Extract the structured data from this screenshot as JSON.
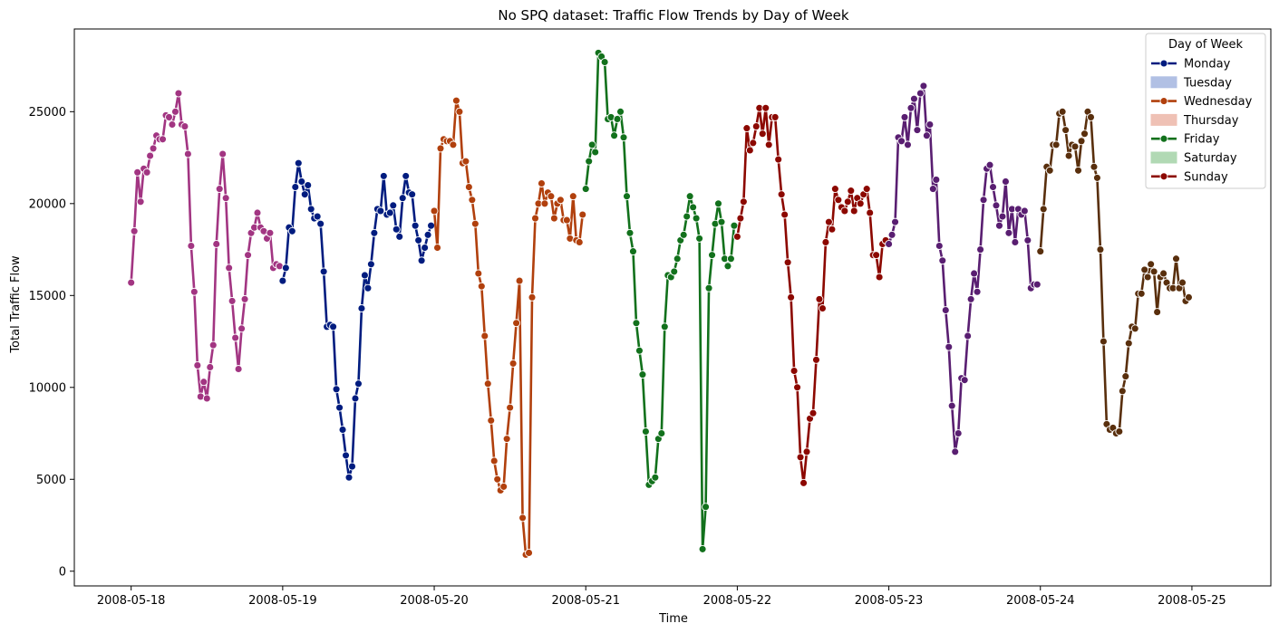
{
  "chart_data": {
    "type": "line",
    "title": "No SPQ dataset: Traffic Flow Trends by Day of Week",
    "xlabel": "Time",
    "ylabel": "Total Traffic Flow",
    "x_is_time": true,
    "xlim": [
      "2008-05-17 15:00",
      "2008-05-25 12:30"
    ],
    "ylim": [
      -800,
      29500
    ],
    "grid": false,
    "xticks": [
      "2008-05-18",
      "2008-05-19",
      "2008-05-20",
      "2008-05-21",
      "2008-05-22",
      "2008-05-23",
      "2008-05-24",
      "2008-05-25"
    ],
    "yticks": [
      0,
      5000,
      10000,
      15000,
      20000,
      25000
    ],
    "legend": {
      "title": "Day of Week",
      "position": "top-right",
      "entries": [
        {
          "label": "Monday",
          "kind": "line",
          "color": "#001c7f"
        },
        {
          "label": "Tuesday",
          "kind": "band",
          "color": "#b1c0e4"
        },
        {
          "label": "Wednesday",
          "kind": "line",
          "color": "#b1400d"
        },
        {
          "label": "Thursday",
          "kind": "band",
          "color": "#efc1b5"
        },
        {
          "label": "Friday",
          "kind": "line",
          "color": "#12711c"
        },
        {
          "label": "Saturday",
          "kind": "band",
          "color": "#b1d9b4"
        },
        {
          "label": "Sunday",
          "kind": "line",
          "color": "#8c0800"
        }
      ]
    },
    "series": [
      {
        "color": "#a23582",
        "x_start": "2008-05-18 00:00",
        "step_minutes": 30,
        "values": [
          15700,
          18500,
          21700,
          20100,
          21900,
          21700,
          22600,
          23000,
          23700,
          23500,
          23500,
          24800,
          24700,
          24300,
          25000,
          26000,
          24300,
          24200,
          22700,
          17700,
          15200,
          11200,
          9500,
          10300,
          9400,
          11100,
          12300,
          17800,
          20800,
          22700,
          20300,
          16500,
          14700,
          12700,
          11000,
          13200,
          14800,
          17200,
          18400,
          18700,
          19500,
          18700,
          18500,
          18100,
          18400,
          16500,
          16700,
          16600
        ]
      },
      {
        "color": "#001c7f",
        "x_start": "2008-05-19 00:00",
        "step_minutes": 30,
        "values": [
          15800,
          16500,
          18700,
          18500,
          20900,
          22200,
          21200,
          20500,
          21000,
          19700,
          19200,
          19300,
          18900,
          16300,
          13300,
          13400,
          13300,
          9900,
          8900,
          7700,
          6300,
          5100,
          5700,
          9400,
          10200,
          14300,
          16100,
          15400,
          16700,
          18400,
          19700,
          19600,
          21500,
          19400,
          19500,
          19900,
          18600,
          18200,
          20300,
          21500,
          20600,
          20500,
          18800,
          18000,
          16900,
          17600,
          18300,
          18800
        ]
      },
      {
        "color": "#b1400d",
        "x_start": "2008-05-20 00:00",
        "step_minutes": 30,
        "values": [
          19600,
          17600,
          23000,
          23500,
          23400,
          23400,
          23200,
          25600,
          25000,
          22200,
          22300,
          20900,
          20200,
          18900,
          16200,
          15500,
          12800,
          10200,
          8200,
          6000,
          5000,
          4400,
          4600,
          7200,
          8900,
          11300,
          13500,
          15800,
          2900,
          900,
          1000,
          14900,
          19200,
          20000,
          21100,
          20000,
          20600,
          20400,
          19200,
          20000,
          20200,
          19100,
          19100,
          18100,
          20400,
          18000,
          17900,
          19400
        ]
      },
      {
        "color": "#12711c",
        "x_start": "2008-05-21 00:00",
        "step_minutes": 30,
        "values": [
          20800,
          22300,
          23200,
          22800,
          28200,
          28000,
          27700,
          24600,
          24700,
          23700,
          24600,
          25000,
          23600,
          20400,
          18400,
          17400,
          13500,
          12000,
          10700,
          7600,
          4700,
          4900,
          5100,
          7200,
          7500,
          13300,
          16100,
          16000,
          16300,
          17000,
          18000,
          18300,
          19300,
          20400,
          19800,
          19200,
          18100,
          1200,
          3500,
          15400,
          17200,
          18900,
          20000,
          19000,
          17000,
          16600,
          17000,
          18800
        ]
      },
      {
        "color": "#8c0800",
        "x_start": "2008-05-22 00:00",
        "step_minutes": 30,
        "values": [
          18200,
          19200,
          20100,
          24100,
          22900,
          23300,
          24200,
          25200,
          23800,
          25200,
          23200,
          24700,
          24700,
          22400,
          20500,
          19400,
          16800,
          14900,
          10900,
          10000,
          6200,
          4800,
          6500,
          8300,
          8600,
          11500,
          14800,
          14300,
          17900,
          19000,
          18600,
          20800,
          20200,
          19800,
          19600,
          20100,
          20700,
          19600,
          20300,
          20000,
          20500,
          20800,
          19500,
          17200,
          17200,
          16000,
          17800,
          18000
        ]
      },
      {
        "color": "#591e71",
        "x_start": "2008-05-23 00:00",
        "step_minutes": 30,
        "values": [
          17800,
          18300,
          19000,
          23600,
          23400,
          24700,
          23200,
          25200,
          25700,
          24000,
          26000,
          26400,
          23700,
          24300,
          20800,
          21300,
          17700,
          16900,
          14200,
          12200,
          9000,
          6500,
          7500,
          10500,
          10400,
          12800,
          14800,
          16200,
          15200,
          17500,
          20200,
          21900,
          22100,
          20900,
          19900,
          18800,
          19300,
          21200,
          18400,
          19700,
          17900,
          19700,
          19400,
          19600,
          18000,
          15400,
          15600,
          15600
        ]
      },
      {
        "color": "#592f0d",
        "x_start": "2008-05-24 00:00",
        "step_minutes": 30,
        "values": [
          17400,
          19700,
          22000,
          21800,
          23200,
          23200,
          24900,
          25000,
          24000,
          22600,
          23200,
          23100,
          21800,
          23400,
          23800,
          25000,
          24700,
          22000,
          21400,
          17500,
          12500,
          8000,
          7700,
          7800,
          7500,
          7600,
          9800,
          10600,
          12400,
          13300,
          13200,
          15100,
          15100,
          16400,
          16000,
          16700,
          16300,
          14100,
          16000,
          16200,
          15700,
          15400,
          15400,
          17000,
          15400,
          15700,
          14700,
          14900
        ]
      }
    ]
  }
}
